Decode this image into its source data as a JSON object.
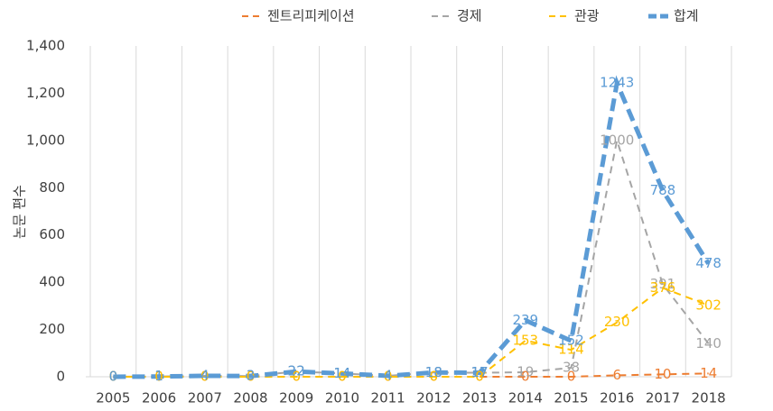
{
  "chart_data": {
    "type": "line",
    "y_label": "논문 편수",
    "categories": [
      "2005",
      "2006",
      "2007",
      "2008",
      "2009",
      "2010",
      "2011",
      "2012",
      "2013",
      "2014",
      "2015",
      "2016",
      "2017",
      "2018"
    ],
    "series": [
      {
        "name": "젠트리피케이션",
        "color": "#ed7d31",
        "values": [
          0,
          0,
          0,
          0,
          0,
          0,
          0,
          0,
          0,
          0,
          0,
          6,
          10,
          14
        ]
      },
      {
        "name": "경제",
        "color": "#a5a5a5",
        "values": [
          0,
          1,
          4,
          3,
          22,
          14,
          4,
          18,
          17,
          19,
          38,
          1000,
          391,
          140
        ]
      },
      {
        "name": "관광",
        "color": "#ffc000",
        "values": [
          0,
          0,
          0,
          0,
          0,
          0,
          0,
          0,
          0,
          153,
          114,
          230,
          376,
          302
        ]
      },
      {
        "name": "합계",
        "color": "#5b9bd5",
        "values": [
          0,
          1,
          4,
          3,
          22,
          14,
          4,
          18,
          17,
          239,
          152,
          1243,
          788,
          478
        ]
      }
    ],
    "ylim": [
      0,
      1400
    ],
    "yticks": [
      0,
      200,
      400,
      600,
      800,
      {
        "value": 1000,
        "label": "1,000"
      },
      {
        "value": 1200,
        "label": "1,200"
      },
      {
        "value": 1400,
        "label": "1,400"
      }
    ],
    "grid": true
  }
}
